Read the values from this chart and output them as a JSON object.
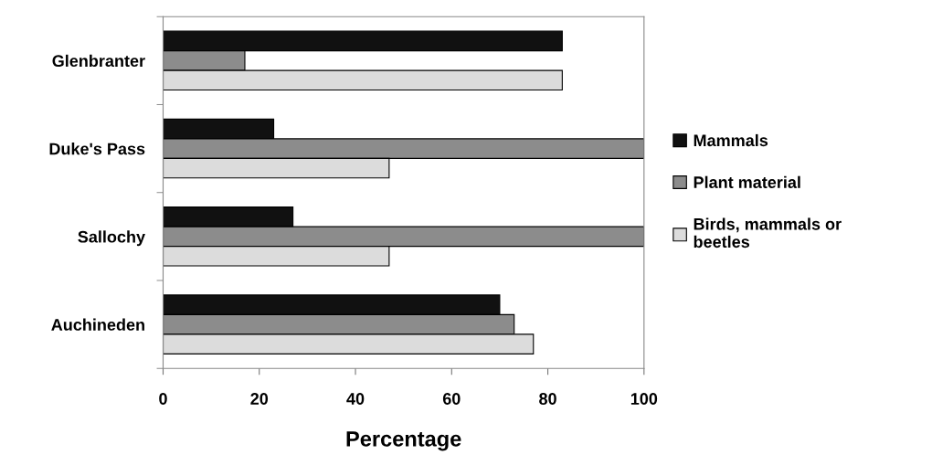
{
  "chart_data": {
    "type": "bar",
    "orientation": "horizontal",
    "xlabel": "Percentage",
    "categories": [
      "Glenbranter",
      "Duke's Pass",
      "Sallochy",
      "Auchineden"
    ],
    "series": [
      {
        "name": "Mammals",
        "color": "#111111",
        "values": [
          83,
          23,
          27,
          70
        ]
      },
      {
        "name": "Plant material",
        "color": "#8c8c8c",
        "values": [
          17,
          100,
          100,
          73
        ]
      },
      {
        "name": "Birds, mammals or\nbeetles",
        "color": "#dcdcdc",
        "values": [
          83,
          47,
          47,
          77
        ]
      }
    ],
    "xlim": [
      0,
      100
    ],
    "xticks": [
      0,
      20,
      40,
      60,
      80,
      100
    ],
    "grid": false,
    "legend": "right"
  }
}
